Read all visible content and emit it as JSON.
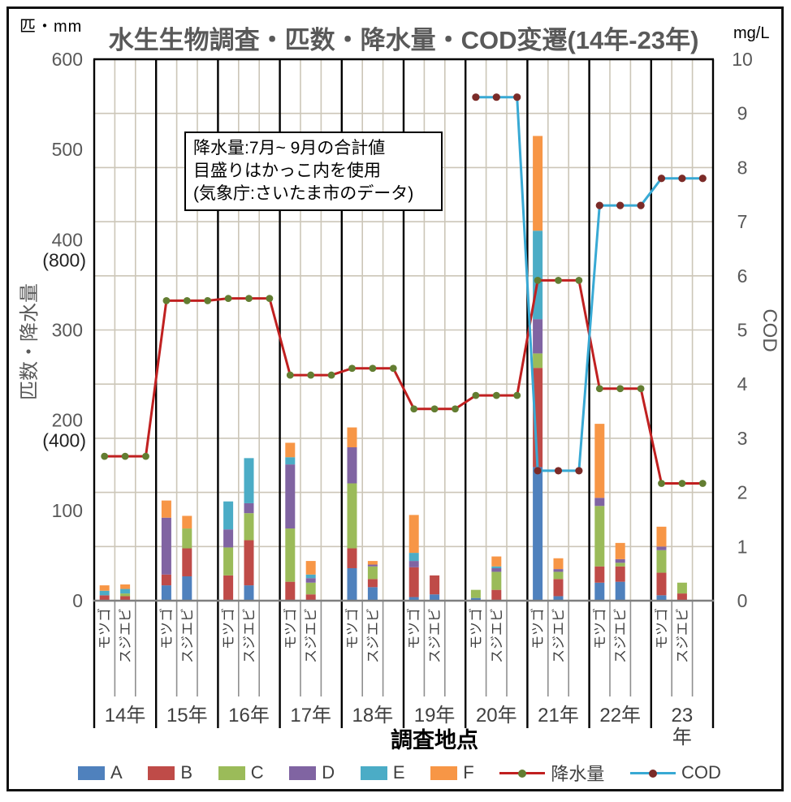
{
  "chart_data": {
    "type": "combo-stacked-bar-line",
    "title": "水生生物調査・匹数・降水量・COD変遷(14年-23年)",
    "unit_top_left": "匹・mm",
    "unit_top_right": "mg/L",
    "x_axis_title": "調査地点",
    "note_box": {
      "lines": [
        "降水量:7月~ 9月の合計値",
        "目盛りはかっこ内を使用",
        "(気象庁:さいたま市のデータ)"
      ]
    },
    "y_left": {
      "title": "匹数・降水量",
      "min": 0,
      "max": 600,
      "ticks": [
        {
          "value": 600,
          "label": "600",
          "sub": ""
        },
        {
          "value": 500,
          "label": "500",
          "sub": ""
        },
        {
          "value": 400,
          "label": "400",
          "sub": "(800)"
        },
        {
          "value": 300,
          "label": "300",
          "sub": ""
        },
        {
          "value": 200,
          "label": "200",
          "sub": "(400)"
        },
        {
          "value": 100,
          "label": "100",
          "sub": ""
        },
        {
          "value": 0,
          "label": "0",
          "sub": ""
        }
      ],
      "parenthesized_scale_note": "降水量はかっこ内の目盛り(表示値×2 mm)を使用"
    },
    "y_right": {
      "title": "COD",
      "min": 0,
      "max": 10,
      "tick_step": 1
    },
    "x_axis": {
      "years": [
        "14年",
        "15年",
        "16年",
        "17年",
        "18年",
        "19年",
        "20年",
        "21年",
        "22年",
        "23年"
      ],
      "year_label_lines": [
        [
          "14年"
        ],
        [
          "15年"
        ],
        [
          "16年"
        ],
        [
          "17年"
        ],
        [
          "18年"
        ],
        [
          "19年"
        ],
        [
          "20年"
        ],
        [
          "21年"
        ],
        [
          "22年"
        ],
        [
          "23",
          "年"
        ]
      ],
      "species": [
        "モツゴ",
        "スジエビ"
      ],
      "slots_per_year": 3
    },
    "bar_series": [
      "A",
      "B",
      "C",
      "D",
      "E",
      "F"
    ],
    "series_colors": {
      "A": "#4F81BD",
      "B": "#BF4B48",
      "C": "#9BBB59",
      "D": "#8064A2",
      "E": "#4BACC6",
      "F": "#F79646",
      "precip_line": "#C02020",
      "precip_marker": "#637D31",
      "cod_line": "#38A9D4",
      "cod_marker": "#7B2B28"
    },
    "bars": [
      {
        "year": "14年",
        "species": "モツゴ",
        "A": 0,
        "B": 6,
        "C": 0,
        "D": 0,
        "E": 5,
        "F": 6
      },
      {
        "year": "14年",
        "species": "スジエビ",
        "A": 0,
        "B": 5,
        "C": 3,
        "D": 0,
        "E": 5,
        "F": 5
      },
      {
        "year": "15年",
        "species": "モツゴ",
        "A": 17,
        "B": 12,
        "C": 0,
        "D": 63,
        "E": 0,
        "F": 19
      },
      {
        "year": "15年",
        "species": "スジエビ",
        "A": 27,
        "B": 31,
        "C": 22,
        "D": 0,
        "E": 0,
        "F": 14
      },
      {
        "year": "16年",
        "species": "モツゴ",
        "A": 0,
        "B": 28,
        "C": 31,
        "D": 20,
        "E": 31,
        "F": 0
      },
      {
        "year": "16年",
        "species": "スジエビ",
        "A": 17,
        "B": 50,
        "C": 30,
        "D": 11,
        "E": 50,
        "F": 0
      },
      {
        "year": "17年",
        "species": "モツゴ",
        "A": 0,
        "B": 21,
        "C": 59,
        "D": 71,
        "E": 8,
        "F": 16
      },
      {
        "year": "17年",
        "species": "スジエビ",
        "A": 0,
        "B": 7,
        "C": 13,
        "D": 5,
        "E": 4,
        "F": 15
      },
      {
        "year": "18年",
        "species": "モツゴ",
        "A": 36,
        "B": 22,
        "C": 72,
        "D": 40,
        "E": 0,
        "F": 22
      },
      {
        "year": "18年",
        "species": "スジエビ",
        "A": 15,
        "B": 9,
        "C": 14,
        "D": 2,
        "E": 0,
        "F": 4
      },
      {
        "year": "19年",
        "species": "モツゴ",
        "A": 4,
        "B": 33,
        "C": 0,
        "D": 7,
        "E": 9,
        "F": 42
      },
      {
        "year": "19年",
        "species": "スジエビ",
        "A": 7,
        "B": 21,
        "C": 0,
        "D": 0,
        "E": 0,
        "F": 0
      },
      {
        "year": "20年",
        "species": "モツゴ",
        "A": 3,
        "B": 0,
        "C": 9,
        "D": 0,
        "E": 0,
        "F": 0
      },
      {
        "year": "20年",
        "species": "スジエビ",
        "A": 0,
        "B": 12,
        "C": 20,
        "D": 4,
        "E": 2,
        "F": 11
      },
      {
        "year": "21年",
        "species": "モツゴ",
        "A": 148,
        "B": 110,
        "C": 16,
        "D": 38,
        "E": 98,
        "F": 105
      },
      {
        "year": "21年",
        "species": "スジエビ",
        "A": 5,
        "B": 19,
        "C": 8,
        "D": 3,
        "E": 0,
        "F": 12
      },
      {
        "year": "22年",
        "species": "モツゴ",
        "A": 20,
        "B": 18,
        "C": 67,
        "D": 9,
        "E": 0,
        "F": 82
      },
      {
        "year": "22年",
        "species": "スジエビ",
        "A": 21,
        "B": 17,
        "C": 4,
        "D": 4,
        "E": 0,
        "F": 18
      },
      {
        "year": "23年",
        "species": "モツゴ",
        "A": 6,
        "B": 25,
        "C": 25,
        "D": 4,
        "E": 0,
        "F": 22
      },
      {
        "year": "23年",
        "species": "スジエビ",
        "A": 0,
        "B": 8,
        "C": 12,
        "D": 0,
        "E": 0,
        "F": 0
      }
    ],
    "precipitation": {
      "name": "降水量",
      "unit": "mm",
      "values_mm_per_year": [
        320,
        665,
        670,
        500,
        515,
        425,
        455,
        710,
        470,
        260
      ],
      "plotted_on": "left axis using parenthesized scale (mm ÷ 2)"
    },
    "cod": {
      "name": "COD",
      "unit": "mg/L",
      "values_per_year": [
        null,
        null,
        null,
        null,
        null,
        null,
        9.3,
        2.4,
        7.3,
        7.8
      ]
    },
    "legend": [
      {
        "label": "A",
        "type": "swatch",
        "color_key": "A"
      },
      {
        "label": "B",
        "type": "swatch",
        "color_key": "B"
      },
      {
        "label": "C",
        "type": "swatch",
        "color_key": "C"
      },
      {
        "label": "D",
        "type": "swatch",
        "color_key": "D"
      },
      {
        "label": "E",
        "type": "swatch",
        "color_key": "E"
      },
      {
        "label": "F",
        "type": "swatch",
        "color_key": "F"
      },
      {
        "label": "降水量",
        "type": "line",
        "line_key": "precip_line",
        "marker_key": "precip_marker"
      },
      {
        "label": "COD",
        "type": "line",
        "line_key": "cod_line",
        "marker_key": "cod_marker"
      }
    ],
    "grid": {
      "h_lines_every_right_axis_unit": 1,
      "v_lines_every_slot": true,
      "color": "#CCC6B8"
    }
  }
}
